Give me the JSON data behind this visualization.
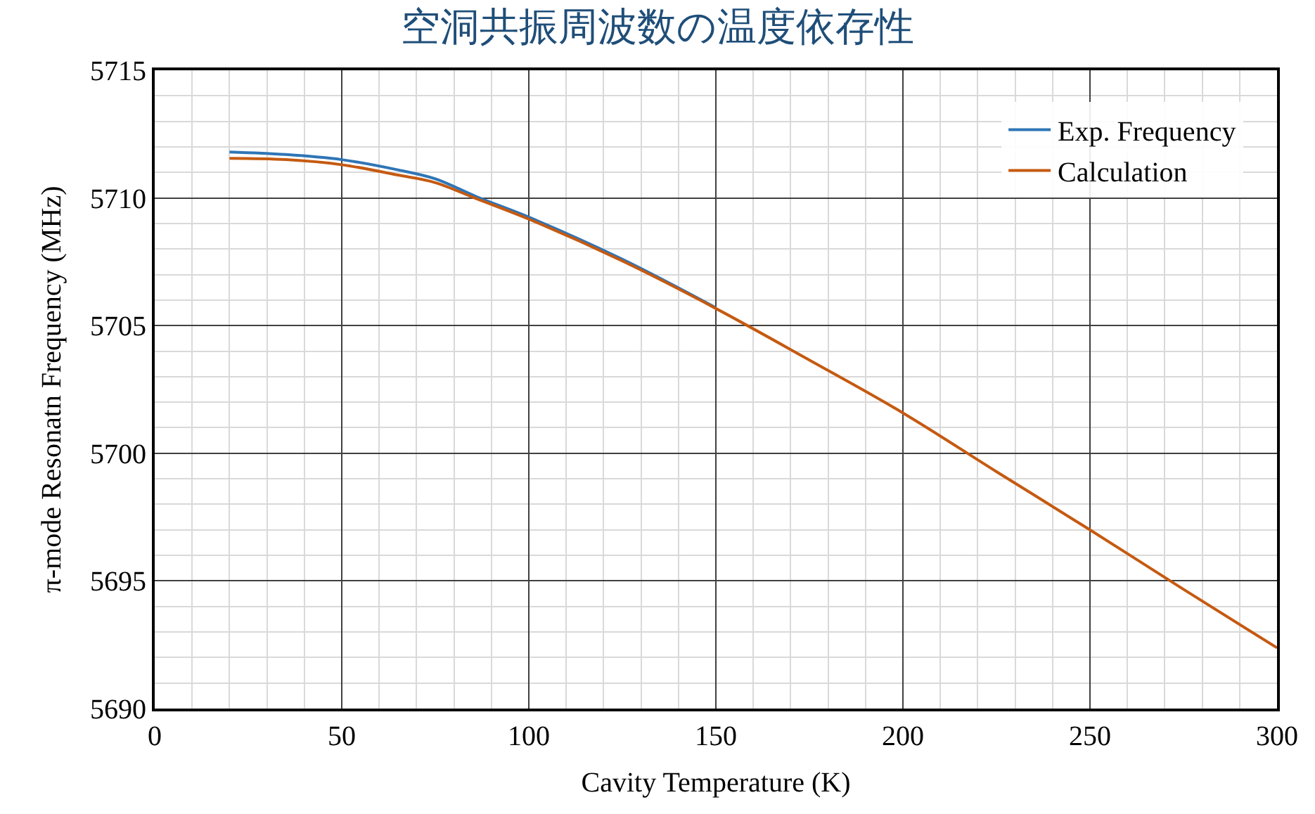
{
  "chart_data": {
    "type": "line",
    "title": "空洞共振周波数の温度依存性",
    "xlabel": "Cavity Temperature (K)",
    "ylabel": "π-mode Resonatn Frequency (MHz)",
    "xlim": [
      0,
      300
    ],
    "xticks": [
      0,
      50,
      100,
      150,
      200,
      250,
      300
    ],
    "ylim": [
      5690,
      5715
    ],
    "yticks": [
      5690,
      5695,
      5700,
      5705,
      5710,
      5715
    ],
    "grid": true,
    "legend": "top right",
    "marker": "none",
    "line_style": "solid",
    "x": [
      20,
      35,
      50,
      65,
      75,
      86,
      100,
      125,
      150,
      175,
      200,
      225,
      250,
      275,
      300
    ],
    "series": [
      {
        "name": "Exp. Frequency",
        "color": "#2e75b6",
        "values": [
          5711.8,
          5711.7,
          5711.5,
          5711.1,
          5710.75,
          5710.05,
          5709.25,
          5707.6,
          5705.7,
          null,
          null,
          null,
          null,
          null,
          null
        ]
      },
      {
        "name": "Calculation",
        "color": "#c55a11",
        "values": [
          5711.55,
          5711.5,
          5711.3,
          5710.9,
          5710.6,
          5709.97,
          5709.17,
          5707.53,
          5705.67,
          5703.65,
          5701.58,
          5699.28,
          5697.0,
          5694.67,
          5692.38
        ]
      }
    ]
  }
}
